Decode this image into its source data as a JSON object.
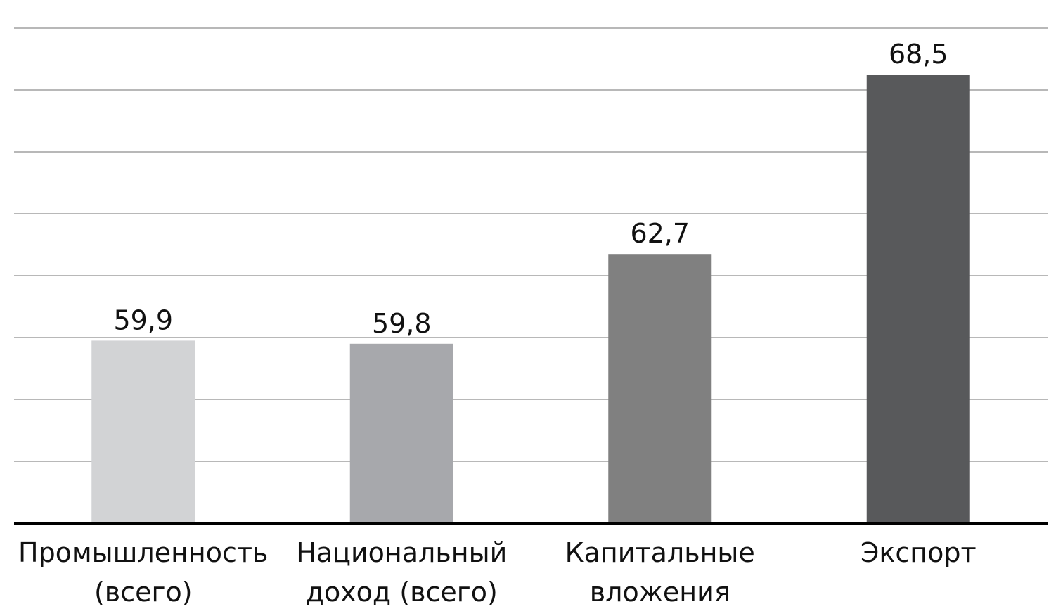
{
  "chart_data": {
    "type": "bar",
    "categories": [
      "Промышленность (всего)",
      "Национальный доход (всего)",
      "Капитальные вложения",
      "Экспорт"
    ],
    "values": [
      59.9,
      59.8,
      62.7,
      68.5
    ],
    "value_labels": [
      "59,9",
      "59,8",
      "62,7",
      "68,5"
    ],
    "colors": [
      "#d2d3d5",
      "#a7a8ac",
      "#808080",
      "#58595b"
    ],
    "ylim": [
      54,
      70
    ],
    "yticks": [
      54,
      56,
      58,
      60,
      62,
      64,
      66,
      68,
      70
    ],
    "grid": true
  }
}
